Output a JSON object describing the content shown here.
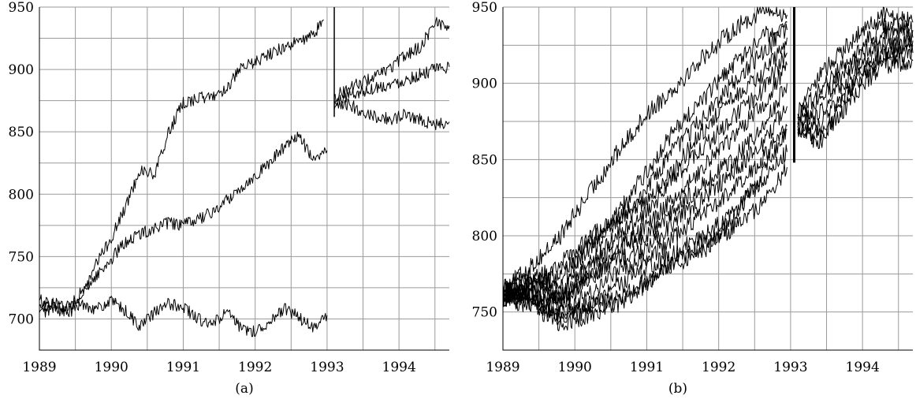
{
  "chart_data": [
    {
      "type": "line",
      "caption": "(a)",
      "xlim": [
        1989.0,
        1994.7
      ],
      "ylim": [
        675,
        950
      ],
      "x_ticks": [
        "1989",
        "1990",
        "1991",
        "1992",
        "1993",
        "1994"
      ],
      "y_ticks": [
        "700",
        "750",
        "800",
        "850",
        "900",
        "950"
      ],
      "grid": true,
      "divider_x": 1993.1,
      "series": [
        {
          "x": [
            1989.0,
            1989.2,
            1989.4,
            1989.6,
            1989.8,
            1990.0,
            1990.2,
            1990.4,
            1990.6,
            1990.8,
            1991.0,
            1991.2,
            1991.4,
            1991.6,
            1991.8,
            1992.0,
            1992.2,
            1992.4,
            1992.6,
            1992.8,
            1992.95
          ],
          "y": [
            715,
            712,
            708,
            718,
            745,
            765,
            790,
            820,
            815,
            850,
            873,
            877,
            878,
            885,
            900,
            906,
            912,
            918,
            922,
            927,
            940
          ]
        },
        {
          "x": [
            1989.0,
            1989.2,
            1989.4,
            1989.6,
            1989.8,
            1990.0,
            1990.2,
            1990.4,
            1990.6,
            1990.8,
            1991.0,
            1991.2,
            1991.4,
            1991.6,
            1991.8,
            1992.0,
            1992.2,
            1992.4,
            1992.6,
            1992.8,
            1993.0
          ],
          "y": [
            710,
            712,
            710,
            722,
            735,
            748,
            762,
            768,
            773,
            777,
            775,
            780,
            785,
            795,
            805,
            815,
            825,
            838,
            848,
            828,
            835
          ]
        },
        {
          "x": [
            1989.0,
            1989.2,
            1989.4,
            1989.6,
            1989.8,
            1990.0,
            1990.2,
            1990.4,
            1990.6,
            1990.8,
            1991.0,
            1991.2,
            1991.4,
            1991.6,
            1991.8,
            1992.0,
            1992.2,
            1992.4,
            1992.6,
            1992.8,
            1993.0
          ],
          "y": [
            705,
            708,
            705,
            712,
            708,
            714,
            706,
            694,
            705,
            712,
            710,
            700,
            695,
            706,
            692,
            690,
            698,
            708,
            702,
            692,
            703
          ]
        },
        {
          "x": [
            1993.1,
            1993.3,
            1993.5,
            1993.7,
            1993.9,
            1994.1,
            1994.3,
            1994.5,
            1994.7
          ],
          "y": [
            878,
            885,
            890,
            895,
            902,
            912,
            918,
            938,
            935
          ]
        },
        {
          "x": [
            1993.1,
            1993.3,
            1993.5,
            1993.7,
            1993.9,
            1994.1,
            1994.3,
            1994.5,
            1994.7
          ],
          "y": [
            872,
            880,
            882,
            886,
            888,
            892,
            896,
            900,
            902
          ]
        },
        {
          "x": [
            1993.1,
            1993.3,
            1993.5,
            1993.7,
            1993.9,
            1994.1,
            1994.3,
            1994.5,
            1994.7
          ],
          "y": [
            868,
            872,
            866,
            862,
            860,
            864,
            860,
            855,
            858
          ]
        }
      ]
    },
    {
      "type": "line",
      "caption": "(b)",
      "xlim": [
        1989.0,
        1994.7
      ],
      "ylim": [
        725,
        950
      ],
      "x_ticks": [
        "1989",
        "1990",
        "1991",
        "1992",
        "1993",
        "1994"
      ],
      "y_ticks": [
        "750",
        "800",
        "850",
        "900",
        "950"
      ],
      "grid": true,
      "divider_x": 1993.05,
      "series": [
        {
          "x": [
            1989.0,
            1989.4,
            1989.8,
            1990.2,
            1990.6,
            1991.0,
            1991.4,
            1991.8,
            1992.2,
            1992.6,
            1992.95
          ],
          "y": [
            765,
            780,
            800,
            828,
            855,
            880,
            898,
            918,
            935,
            948,
            945
          ]
        },
        {
          "x": [
            1989.0,
            1989.4,
            1989.8,
            1990.2,
            1990.6,
            1991.0,
            1991.4,
            1991.8,
            1992.2,
            1992.6,
            1992.95
          ],
          "y": [
            762,
            770,
            782,
            798,
            815,
            842,
            870,
            890,
            912,
            930,
            940
          ]
        },
        {
          "x": [
            1989.0,
            1989.4,
            1989.8,
            1990.2,
            1990.6,
            1991.0,
            1991.4,
            1991.8,
            1992.2,
            1992.6,
            1992.95
          ],
          "y": [
            760,
            765,
            775,
            790,
            810,
            830,
            858,
            878,
            900,
            920,
            935
          ]
        },
        {
          "x": [
            1989.0,
            1989.4,
            1989.8,
            1990.2,
            1990.6,
            1991.0,
            1991.4,
            1991.8,
            1992.2,
            1992.6,
            1992.95
          ],
          "y": [
            768,
            772,
            770,
            795,
            812,
            822,
            845,
            870,
            890,
            905,
            930
          ]
        },
        {
          "x": [
            1989.0,
            1989.4,
            1989.8,
            1990.2,
            1990.6,
            1991.0,
            1991.4,
            1991.8,
            1992.2,
            1992.6,
            1992.95
          ],
          "y": [
            762,
            768,
            760,
            782,
            800,
            815,
            840,
            858,
            878,
            895,
            920
          ]
        },
        {
          "x": [
            1989.0,
            1989.4,
            1989.8,
            1990.2,
            1990.6,
            1991.0,
            1991.4,
            1991.8,
            1992.2,
            1992.6,
            1992.95
          ],
          "y": [
            765,
            762,
            758,
            770,
            790,
            808,
            825,
            845,
            865,
            885,
            912
          ]
        },
        {
          "x": [
            1989.0,
            1989.4,
            1989.8,
            1990.2,
            1990.6,
            1991.0,
            1991.4,
            1991.8,
            1992.2,
            1992.6,
            1992.95
          ],
          "y": [
            760,
            770,
            765,
            778,
            795,
            800,
            818,
            835,
            850,
            870,
            900
          ]
        },
        {
          "x": [
            1989.0,
            1989.4,
            1989.8,
            1990.2,
            1990.6,
            1991.0,
            1991.4,
            1991.8,
            1992.2,
            1992.6,
            1992.95
          ],
          "y": [
            758,
            763,
            755,
            772,
            785,
            792,
            810,
            825,
            842,
            860,
            885
          ]
        },
        {
          "x": [
            1989.0,
            1989.4,
            1989.8,
            1990.2,
            1990.6,
            1991.0,
            1991.4,
            1991.8,
            1992.2,
            1992.6,
            1992.95
          ],
          "y": [
            762,
            760,
            750,
            762,
            778,
            785,
            800,
            815,
            830,
            850,
            872
          ]
        },
        {
          "x": [
            1989.0,
            1989.4,
            1989.8,
            1990.2,
            1990.6,
            1991.0,
            1991.4,
            1991.8,
            1992.2,
            1992.6,
            1992.95
          ],
          "y": [
            760,
            756,
            748,
            755,
            768,
            778,
            790,
            800,
            815,
            835,
            855
          ]
        },
        {
          "x": [
            1989.0,
            1989.4,
            1989.8,
            1990.2,
            1990.6,
            1991.0,
            1991.4,
            1991.8,
            1992.2,
            1992.6,
            1992.95
          ],
          "y": [
            765,
            760,
            745,
            752,
            760,
            770,
            785,
            795,
            805,
            820,
            845
          ]
        },
        {
          "x": [
            1989.0,
            1989.4,
            1989.8,
            1990.2,
            1990.6,
            1991.0,
            1991.4,
            1991.8,
            1992.2,
            1992.6,
            1992.95
          ],
          "y": [
            758,
            755,
            742,
            748,
            755,
            768,
            782,
            790,
            812,
            840,
            870
          ]
        },
        {
          "x": [
            1993.1,
            1993.4,
            1993.7,
            1994.0,
            1994.3,
            1994.7
          ],
          "y": [
            880,
            905,
            920,
            935,
            945,
            940
          ]
        },
        {
          "x": [
            1993.1,
            1993.4,
            1993.7,
            1994.0,
            1994.3,
            1994.7
          ],
          "y": [
            878,
            895,
            910,
            925,
            938,
            935
          ]
        },
        {
          "x": [
            1993.1,
            1993.4,
            1993.7,
            1994.0,
            1994.3,
            1994.7
          ],
          "y": [
            875,
            888,
            905,
            918,
            932,
            930
          ]
        },
        {
          "x": [
            1993.1,
            1993.4,
            1993.7,
            1994.0,
            1994.3,
            1994.7
          ],
          "y": [
            872,
            880,
            898,
            912,
            925,
            925
          ]
        },
        {
          "x": [
            1993.1,
            1993.4,
            1993.7,
            1994.0,
            1994.3,
            1994.7
          ],
          "y": [
            870,
            872,
            890,
            905,
            918,
            920
          ]
        },
        {
          "x": [
            1993.1,
            1993.4,
            1993.7,
            1994.0,
            1994.3,
            1994.7
          ],
          "y": [
            868,
            865,
            880,
            900,
            912,
            915
          ]
        },
        {
          "x": [
            1993.1,
            1993.4,
            1993.7,
            1994.0,
            1994.3,
            1994.7
          ],
          "y": [
            874,
            860,
            885,
            908,
            920,
            928
          ]
        }
      ]
    }
  ]
}
